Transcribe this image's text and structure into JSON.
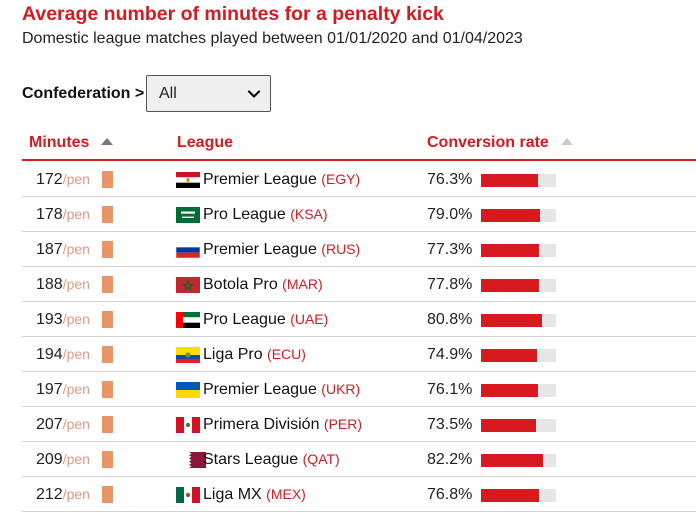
{
  "title": "Average number of minutes for a penalty kick",
  "subtitle": "Domestic league matches played between 01/01/2020 and 01/04/2023",
  "filter": {
    "label": "Confederation >",
    "selected": "All"
  },
  "columns": {
    "minutes": "Minutes",
    "league": "League",
    "conversion": "Conversion rate"
  },
  "unit": "/pen",
  "colors": {
    "accent": "#d71920",
    "minutes_bar": "#e8956a",
    "rate_track": "#e6e6e6"
  },
  "rows": [
    {
      "minutes": "172",
      "flag": "egypt-flag-icon",
      "league": "Premier League",
      "code": "(EGY)",
      "rate": "76.3%",
      "rate_value": 76.3
    },
    {
      "minutes": "178",
      "flag": "saudi-arabia-flag-icon",
      "league": "Pro League",
      "code": "(KSA)",
      "rate": "79.0%",
      "rate_value": 79.0
    },
    {
      "minutes": "187",
      "flag": "russia-flag-icon",
      "league": "Premier League",
      "code": "(RUS)",
      "rate": "77.3%",
      "rate_value": 77.3
    },
    {
      "minutes": "188",
      "flag": "morocco-flag-icon",
      "league": "Botola Pro",
      "code": "(MAR)",
      "rate": "77.8%",
      "rate_value": 77.8
    },
    {
      "minutes": "193",
      "flag": "uae-flag-icon",
      "league": "Pro League",
      "code": "(UAE)",
      "rate": "80.8%",
      "rate_value": 80.8
    },
    {
      "minutes": "194",
      "flag": "ecuador-flag-icon",
      "league": "Liga Pro",
      "code": "(ECU)",
      "rate": "74.9%",
      "rate_value": 74.9
    },
    {
      "minutes": "197",
      "flag": "ukraine-flag-icon",
      "league": "Premier League",
      "code": "(UKR)",
      "rate": "76.1%",
      "rate_value": 76.1
    },
    {
      "minutes": "207",
      "flag": "peru-flag-icon",
      "league": "Primera División",
      "code": "(PER)",
      "rate": "73.5%",
      "rate_value": 73.5
    },
    {
      "minutes": "209",
      "flag": "qatar-flag-icon",
      "league": "Stars League",
      "code": "(QAT)",
      "rate": "82.2%",
      "rate_value": 82.2
    },
    {
      "minutes": "212",
      "flag": "mexico-flag-icon",
      "league": "Liga MX",
      "code": "(MEX)",
      "rate": "76.8%",
      "rate_value": 76.8
    }
  ]
}
